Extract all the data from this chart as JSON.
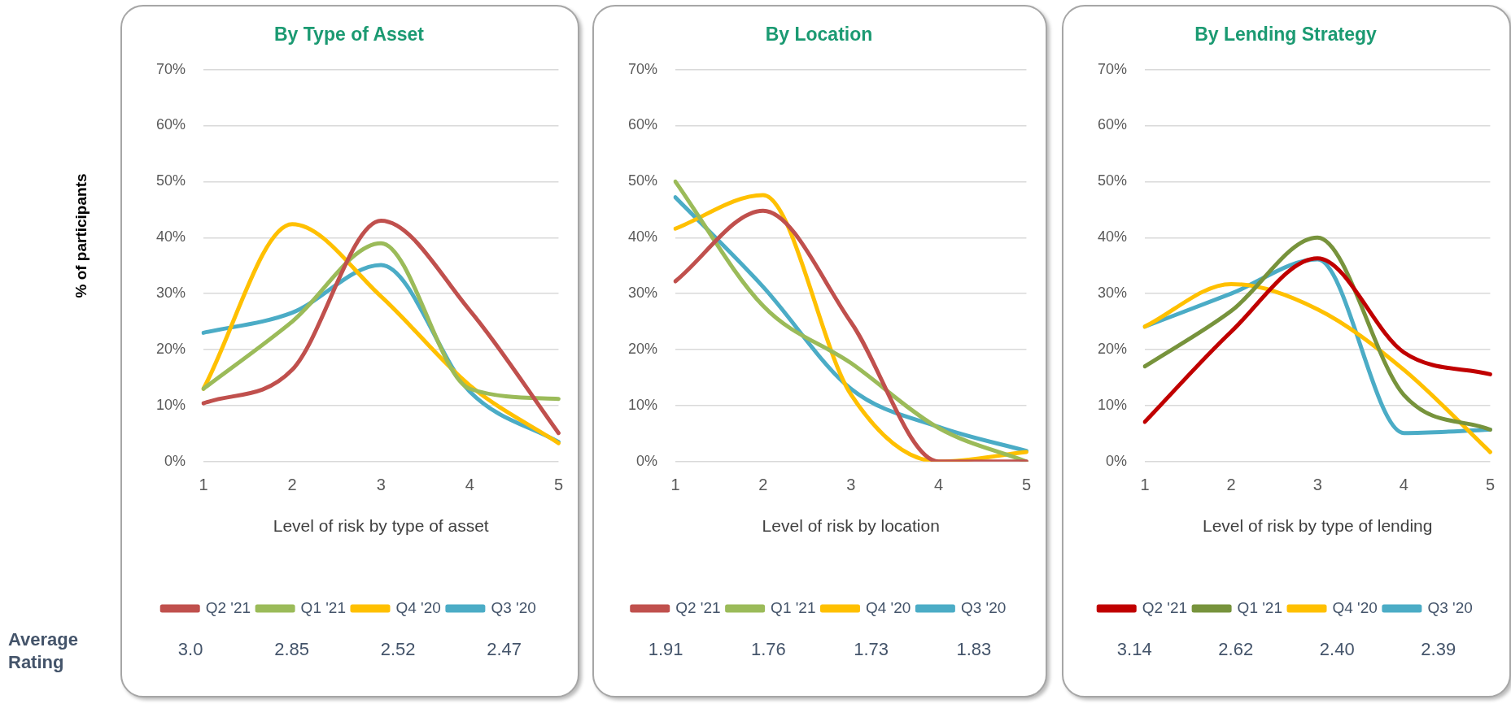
{
  "chart_data": [
    {
      "type": "line",
      "title": "By Type of Asset",
      "xlabel": "Level of risk by type of asset",
      "ylabel": "% of participants",
      "categories": [
        "1",
        "2",
        "3",
        "4",
        "5"
      ],
      "series": [
        {
          "name": "Q2 '21",
          "color": "#c0504d",
          "values": [
            10.4,
            16.4,
            43,
            27,
            5.1
          ]
        },
        {
          "name": "Q1 '21",
          "color": "#9bbb59",
          "values": [
            13,
            25,
            39,
            13,
            11.2
          ]
        },
        {
          "name": "Q4 '20",
          "color": "#ffc000",
          "values": [
            13,
            42.4,
            29.5,
            13.6,
            3.3
          ]
        },
        {
          "name": "Q3 '20",
          "color": "#4bacc6",
          "values": [
            23,
            26.6,
            35.1,
            12.5,
            3.5
          ]
        }
      ],
      "ylim": [
        0,
        70
      ],
      "yticks": [
        {
          "value": 0,
          "label": "0%"
        },
        {
          "value": 10,
          "label": "10%"
        },
        {
          "value": 20,
          "label": "20%"
        },
        {
          "value": 30,
          "label": "30%"
        },
        {
          "value": 40,
          "label": "40%"
        },
        {
          "value": 50,
          "label": "50%"
        },
        {
          "value": 60,
          "label": "60%"
        },
        {
          "value": 70,
          "label": "70%"
        }
      ],
      "grid": "y",
      "legend": "bottom",
      "marker": "none",
      "annotations": [
        "Average Rating",
        "3.0",
        "2.85",
        "2.52",
        "2.47"
      ]
    },
    {
      "type": "line",
      "title": "By Location",
      "xlabel": "Level of risk by location",
      "categories": [
        "1",
        "2",
        "3",
        "4",
        "5"
      ],
      "series": [
        {
          "name": "Q2 '21",
          "color": "#c0504d",
          "values": [
            32.2,
            44.8,
            24.9,
            0,
            0
          ]
        },
        {
          "name": "Q1 '21",
          "color": "#9bbb59",
          "values": [
            50,
            27.8,
            17.6,
            6,
            0
          ]
        },
        {
          "name": "Q4 '20",
          "color": "#ffc000",
          "values": [
            41.6,
            47.6,
            12,
            0,
            1.7
          ]
        },
        {
          "name": "Q3 '20",
          "color": "#4bacc6",
          "values": [
            47.2,
            31.2,
            13,
            6.2,
            1.9
          ]
        }
      ],
      "ylim": [
        0,
        70
      ],
      "yticks": [
        {
          "value": 0,
          "label": "0%"
        },
        {
          "value": 10,
          "label": "10%"
        },
        {
          "value": 20,
          "label": "20%"
        },
        {
          "value": 30,
          "label": "30%"
        },
        {
          "value": 40,
          "label": "40%"
        },
        {
          "value": 50,
          "label": "50%"
        },
        {
          "value": 60,
          "label": "60%"
        },
        {
          "value": 70,
          "label": "70%"
        }
      ],
      "grid": "y",
      "legend": "bottom",
      "marker": "none",
      "annotations": [
        "1.91",
        "1.76",
        "1.73",
        "1.83"
      ]
    },
    {
      "type": "line",
      "title": "By Lending Strategy",
      "xlabel": "Level of risk by type of lending",
      "categories": [
        "1",
        "2",
        "3",
        "4",
        "5"
      ],
      "series": [
        {
          "name": "Q2 '21",
          "color": "#c00000",
          "values": [
            7.1,
            23.2,
            36.3,
            19.5,
            15.6
          ]
        },
        {
          "name": "Q1 '21",
          "color": "#77933c",
          "values": [
            17,
            26.9,
            40,
            11.9,
            5.7
          ]
        },
        {
          "name": "Q4 '20",
          "color": "#ffc000",
          "values": [
            24.1,
            31.7,
            27.2,
            16.4,
            1.7
          ]
        },
        {
          "name": "Q3 '20",
          "color": "#4bacc6",
          "values": [
            24.1,
            30,
            36.1,
            5.1,
            5.7
          ]
        }
      ],
      "ylim": [
        0,
        70
      ],
      "yticks": [
        {
          "value": 0,
          "label": "0%"
        },
        {
          "value": 10,
          "label": "10%"
        },
        {
          "value": 20,
          "label": "20%"
        },
        {
          "value": 30,
          "label": "30%"
        },
        {
          "value": 40,
          "label": "40%"
        },
        {
          "value": 50,
          "label": "50%"
        },
        {
          "value": 60,
          "label": "60%"
        },
        {
          "value": 70,
          "label": "70%"
        }
      ],
      "grid": "y",
      "legend": "bottom",
      "marker": "none",
      "annotations": [
        "3.14",
        "2.62",
        "2.40",
        "2.39"
      ]
    }
  ]
}
